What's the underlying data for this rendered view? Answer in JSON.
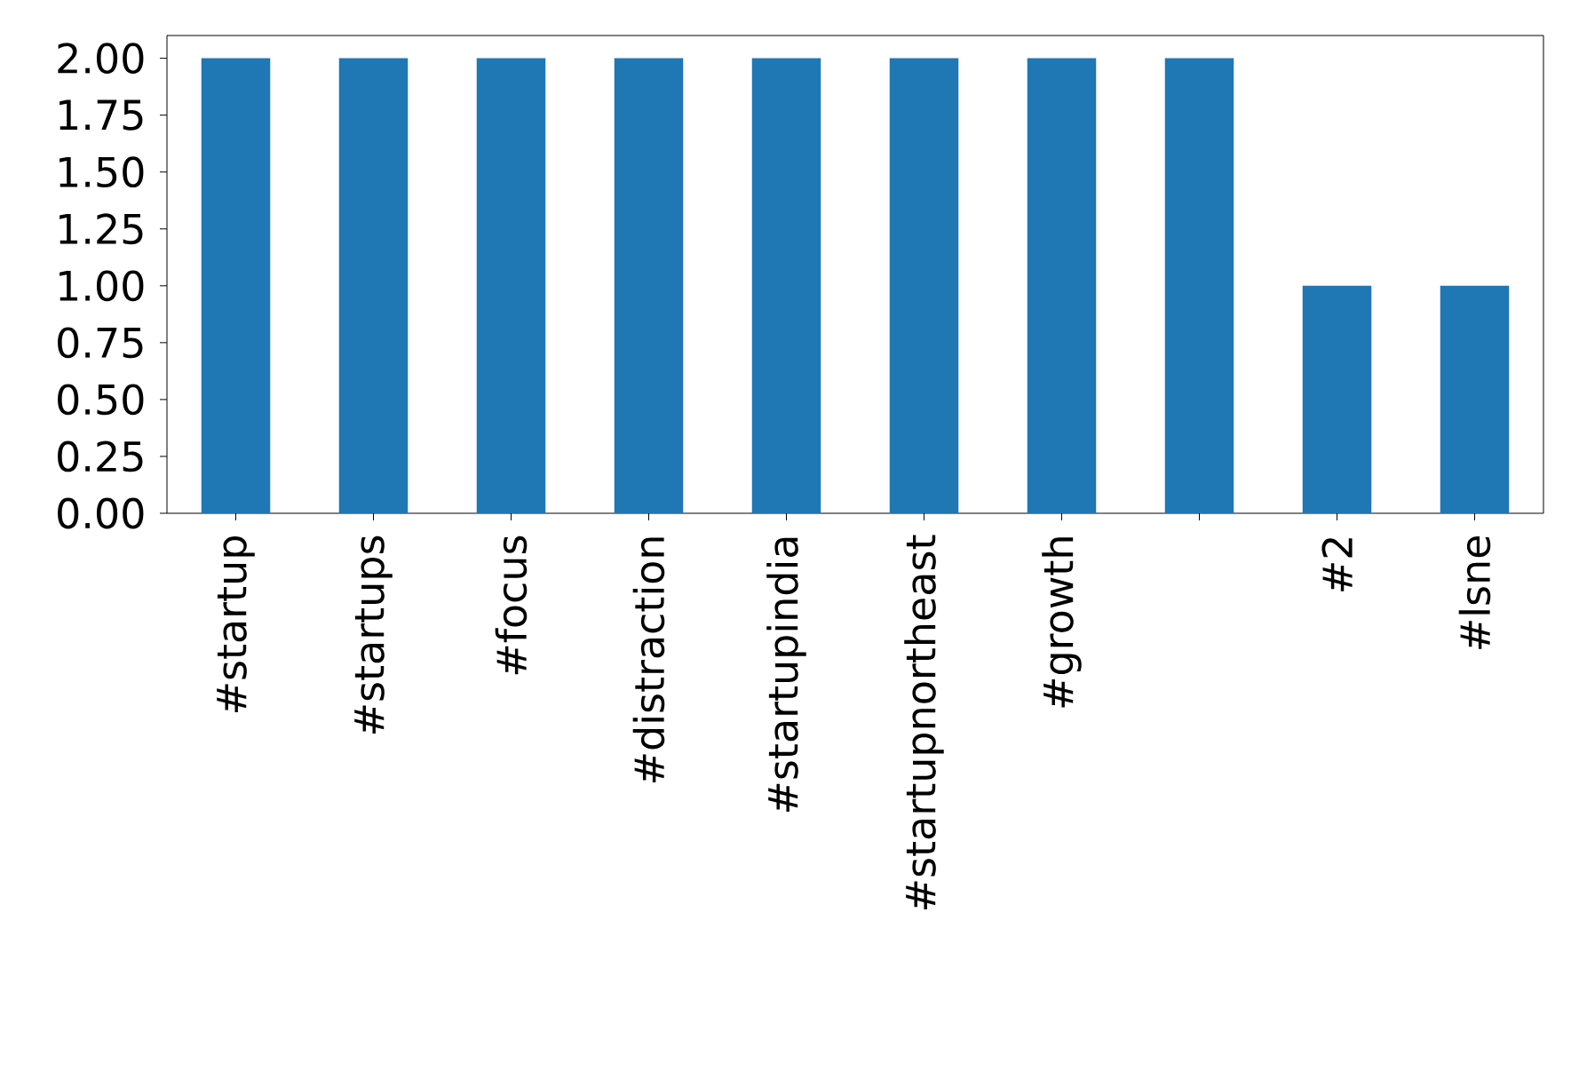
{
  "chart_data": {
    "type": "bar",
    "categories": [
      "#startup",
      "#startups",
      "#focus",
      "#distraction",
      "#startupindia",
      "#startupnortheast",
      "#growth",
      null,
      "#2",
      "#lsne"
    ],
    "values": [
      2,
      2,
      2,
      2,
      2,
      2,
      2,
      2,
      1,
      1
    ],
    "color": "#1f77b4",
    "ylim": [
      0,
      2.1
    ],
    "yticks": [
      {
        "value": 0,
        "label": "0.00"
      },
      {
        "value": 0.25,
        "label": "0.25"
      },
      {
        "value": 0.5,
        "label": "0.50"
      },
      {
        "value": 0.75,
        "label": "0.75"
      },
      {
        "value": 1,
        "label": "1.00"
      },
      {
        "value": 1.25,
        "label": "1.25"
      },
      {
        "value": 1.5,
        "label": "1.50"
      },
      {
        "value": 1.75,
        "label": "1.75"
      },
      {
        "value": 2,
        "label": "2.00"
      }
    ],
    "grid": false
  }
}
